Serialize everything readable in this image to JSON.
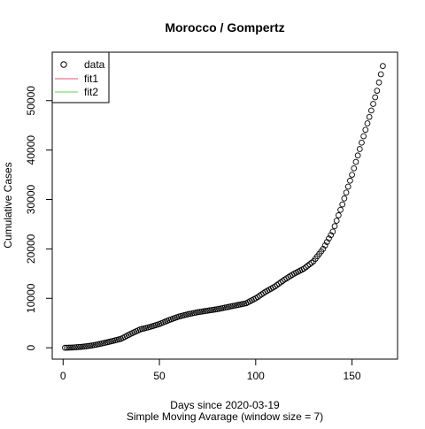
{
  "chart_data": {
    "type": "scatter",
    "title": "Morocco / Gompertz",
    "xlabel": "Days since 2020-03-19",
    "subtitle": "Simple Moving Avarage (window size = 7)",
    "ylabel": "Cumulative Cases",
    "xlim": [
      1,
      167
    ],
    "ylim": [
      0,
      57500
    ],
    "xticks": [
      0,
      50,
      100,
      150
    ],
    "yticks": [
      0,
      10000,
      20000,
      30000,
      40000,
      50000
    ],
    "legend": {
      "position": "top-left",
      "entries": [
        {
          "label": "data",
          "kind": "point",
          "color": "#000000"
        },
        {
          "label": "fit1",
          "kind": "line",
          "color": "#DF536B"
        },
        {
          "label": "fit2",
          "kind": "line",
          "color": "#61D04F"
        }
      ]
    },
    "series": [
      {
        "name": "data",
        "marker": "open-circle",
        "anchors": [
          [
            1,
            0
          ],
          [
            5,
            50
          ],
          [
            10,
            200
          ],
          [
            15,
            450
          ],
          [
            20,
            850
          ],
          [
            25,
            1300
          ],
          [
            30,
            1800
          ],
          [
            35,
            2800
          ],
          [
            40,
            3700
          ],
          [
            45,
            4200
          ],
          [
            50,
            4800
          ],
          [
            55,
            5600
          ],
          [
            60,
            6300
          ],
          [
            65,
            6800
          ],
          [
            70,
            7200
          ],
          [
            75,
            7500
          ],
          [
            80,
            7800
          ],
          [
            85,
            8200
          ],
          [
            90,
            8600
          ],
          [
            95,
            9000
          ],
          [
            100,
            10000
          ],
          [
            105,
            11300
          ],
          [
            110,
            12400
          ],
          [
            115,
            13800
          ],
          [
            120,
            15000
          ],
          [
            125,
            16000
          ],
          [
            130,
            17500
          ],
          [
            135,
            20000
          ],
          [
            140,
            23500
          ],
          [
            145,
            29000
          ],
          [
            150,
            35000
          ],
          [
            155,
            41500
          ],
          [
            160,
            48000
          ],
          [
            163,
            52000
          ],
          [
            166,
            57000
          ]
        ]
      }
    ]
  }
}
